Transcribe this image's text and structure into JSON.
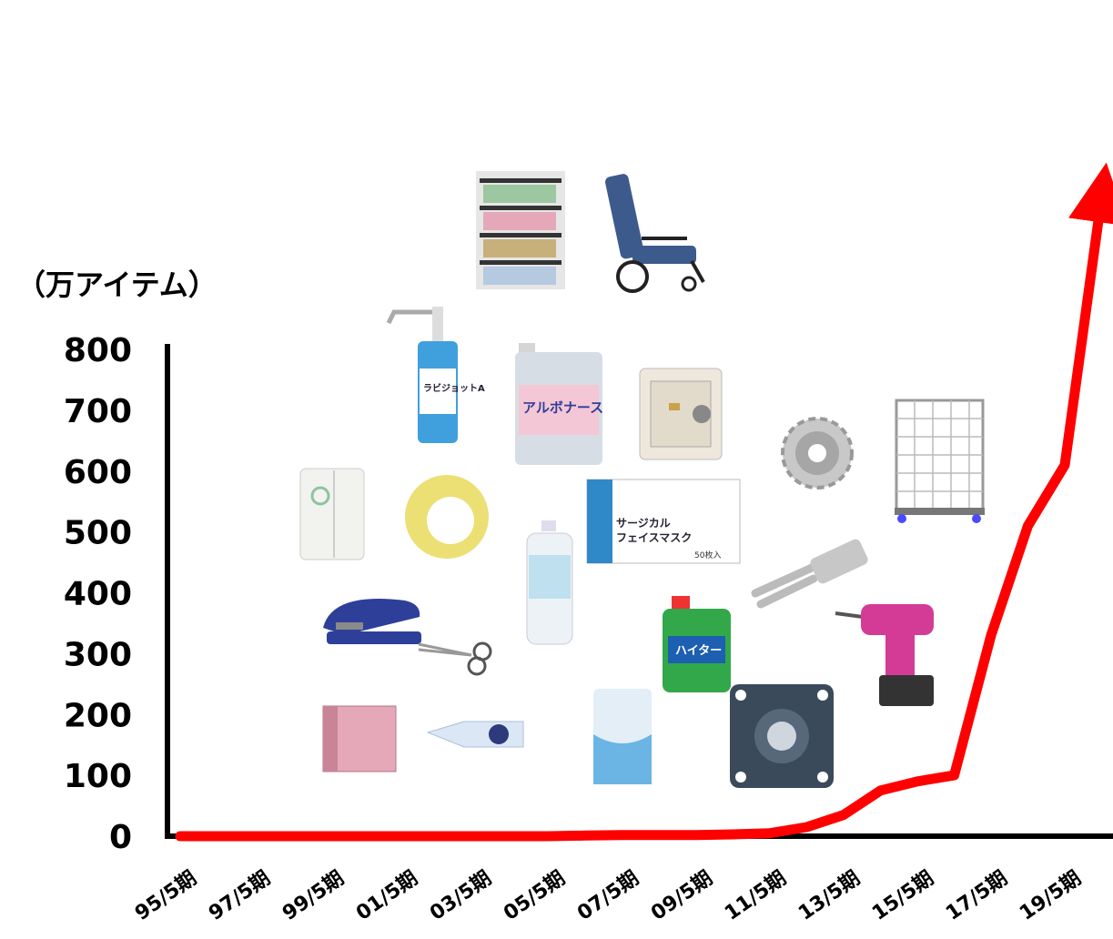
{
  "unit_label": "（万アイテム）",
  "colors": {
    "line": "#ff0000",
    "axis": "#000000"
  },
  "chart_data": {
    "type": "line",
    "ylabel": "（万アイテム）",
    "ylim": [
      0,
      800
    ],
    "yticks": [
      0,
      100,
      200,
      300,
      400,
      500,
      600,
      700,
      800
    ],
    "x_tick_labels": [
      "95/5期",
      "97/5期",
      "99/5期",
      "01/5期",
      "03/5期",
      "05/5期",
      "07/5期",
      "09/5期",
      "11/5期",
      "13/5期",
      "15/5期",
      "17/5期",
      "19/5期"
    ],
    "x": [
      "95/5期",
      "96/5期",
      "97/5期",
      "98/5期",
      "99/5期",
      "00/5期",
      "01/5期",
      "02/5期",
      "03/5期",
      "04/5期",
      "05/5期",
      "06/5期",
      "07/5期",
      "08/5期",
      "09/5期",
      "10/5期",
      "11/5期",
      "12/5期",
      "13/5期",
      "14/5期",
      "15/5期",
      "16/5期",
      "17/5期",
      "18/5期",
      "19/5期",
      "20/5期"
    ],
    "series": [
      {
        "values": [
          0,
          0,
          0,
          0,
          0,
          0,
          0,
          0,
          0,
          0,
          0,
          1,
          2,
          2,
          2,
          3,
          5,
          15,
          35,
          75,
          90,
          100,
          330,
          510,
          610,
          1050
        ]
      }
    ],
    "grid": false,
    "legend": "none"
  },
  "products": [
    {
      "icon": "shelving-icon"
    },
    {
      "icon": "reclining-wheelchair-icon"
    },
    {
      "icon": "hand-sanitizer-pump-icon",
      "label": "ラビジョットA"
    },
    {
      "icon": "alcohol-jug-icon",
      "label": "アルボナース"
    },
    {
      "icon": "safe-icon"
    },
    {
      "icon": "sprocket-icon"
    },
    {
      "icon": "roll-cage-cart-icon"
    },
    {
      "icon": "toilet-paper-icon"
    },
    {
      "icon": "packing-tape-icon"
    },
    {
      "icon": "mask-box-icon",
      "label": "サージカル\nフェイスマスク",
      "sublabel": "50枚入"
    },
    {
      "icon": "water-bottle-icon"
    },
    {
      "icon": "crimp-terminal-icon"
    },
    {
      "icon": "stapler-icon"
    },
    {
      "icon": "scissors-icon"
    },
    {
      "icon": "bleach-bottle-icon",
      "label": "ハイター"
    },
    {
      "icon": "impact-driver-icon"
    },
    {
      "icon": "binder-icon"
    },
    {
      "icon": "correction-tape-icon"
    },
    {
      "icon": "tissue-icon"
    },
    {
      "icon": "bearing-unit-icon"
    }
  ]
}
